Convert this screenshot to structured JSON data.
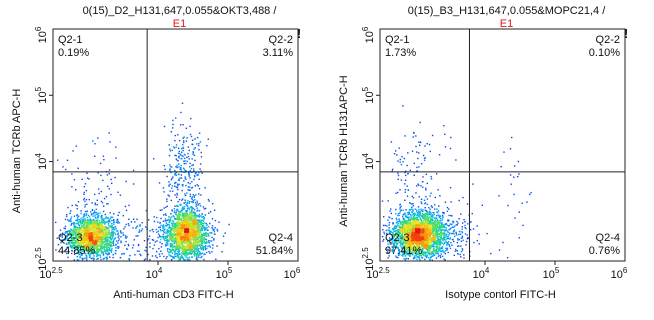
{
  "chart_data": [
    {
      "type": "scatter",
      "title": "0(15)_D2_H131,647,0.055&OKT3,488 /",
      "subtitle": "E1",
      "flag": "!",
      "xlabel": "Anti-human CD3 FITC-H",
      "ylabel": "Anti-human TCRb APC-H",
      "x_scale": "log",
      "y_scale": "log",
      "xlim": [
        316,
        1000000
      ],
      "ylim": [
        316,
        1000000
      ],
      "x_ticks": [
        {
          "base": "10",
          "exp": "2.5"
        },
        {
          "base": "10",
          "exp": "4"
        },
        {
          "base": "10",
          "exp": "5"
        },
        {
          "base": "10",
          "exp": "6"
        }
      ],
      "y_ticks": [
        {
          "base": "10",
          "exp": "2.5"
        },
        {
          "base": "10",
          "exp": "4"
        },
        {
          "base": "10",
          "exp": "5"
        },
        {
          "base": "10",
          "exp": "6"
        }
      ],
      "gate": {
        "x": 7000,
        "y": 7000
      },
      "quadrants": [
        {
          "name": "Q2-1",
          "pct": "0.19%"
        },
        {
          "name": "Q2-2",
          "pct": "3.11%"
        },
        {
          "name": "Q2-3",
          "pct": "44.85%"
        },
        {
          "name": "Q2-4",
          "pct": "51.84%"
        }
      ],
      "populations": [
        {
          "cx": 3.05,
          "cy": 2.88,
          "sx": 0.18,
          "sy": 0.16,
          "n": 1700
        },
        {
          "cx": 4.4,
          "cy": 2.92,
          "sx": 0.16,
          "sy": 0.2,
          "n": 1900
        },
        {
          "cx": 4.35,
          "cy": 3.9,
          "sx": 0.14,
          "sy": 0.35,
          "n": 260
        },
        {
          "cx": 3.1,
          "cy": 3.4,
          "sx": 0.25,
          "sy": 0.4,
          "n": 120
        },
        {
          "cx": 3.8,
          "cy": 2.8,
          "sx": 0.35,
          "sy": 0.25,
          "n": 150
        }
      ]
    },
    {
      "type": "scatter",
      "title": "0(15)_B3_H131,647,0.055&MOPC21,4 /",
      "subtitle": "E1",
      "flag": "!",
      "xlabel": "Isotype contorl  FITC-H",
      "ylabel": "Anti-human TCRb H131APC-H",
      "x_scale": "log",
      "y_scale": "log",
      "xlim": [
        316,
        1000000
      ],
      "ylim": [
        316,
        1000000
      ],
      "x_ticks": [
        {
          "base": "10",
          "exp": "2.5"
        },
        {
          "base": "10",
          "exp": "4"
        },
        {
          "base": "10",
          "exp": "5"
        },
        {
          "base": "10",
          "exp": "6"
        }
      ],
      "y_ticks": [
        {
          "base": "10",
          "exp": "2.5"
        },
        {
          "base": "10",
          "exp": "4"
        },
        {
          "base": "10",
          "exp": "5"
        },
        {
          "base": "10",
          "exp": "6"
        }
      ],
      "gate": {
        "x": 6000,
        "y": 7000
      },
      "quadrants": [
        {
          "name": "Q2-1",
          "pct": "1.73%"
        },
        {
          "name": "Q2-2",
          "pct": "0.10%"
        },
        {
          "name": "Q2-3",
          "pct": "97.41%"
        },
        {
          "name": "Q2-4",
          "pct": "0.76%"
        }
      ],
      "populations": [
        {
          "cx": 3.05,
          "cy": 2.9,
          "sx": 0.2,
          "sy": 0.18,
          "n": 2400
        },
        {
          "cx": 3.0,
          "cy": 3.8,
          "sx": 0.22,
          "sy": 0.4,
          "n": 130
        },
        {
          "cx": 3.5,
          "cy": 2.9,
          "sx": 0.25,
          "sy": 0.25,
          "n": 150
        },
        {
          "cx": 4.4,
          "cy": 3.4,
          "sx": 0.12,
          "sy": 0.5,
          "n": 25
        }
      ]
    }
  ]
}
